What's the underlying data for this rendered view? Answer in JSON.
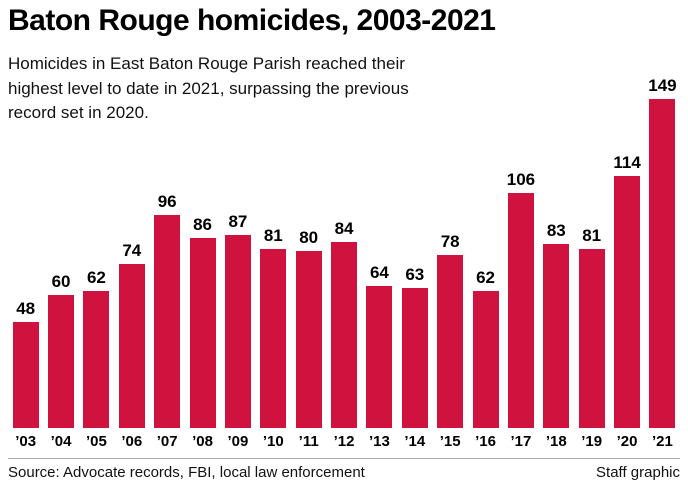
{
  "title": "Baton Rouge homicides, 2003-2021",
  "subtitle": "Homicides in East Baton Rouge Parish reached their highest level to date in 2021, surpassing the previous record set in 2020.",
  "footer": {
    "source": "Source: Advocate records, FBI, local law enforcement",
    "credit": "Staff graphic"
  },
  "colors": {
    "bar": "#d0123f",
    "text": "#000000"
  },
  "chart_data": {
    "type": "bar",
    "categories": [
      "’03",
      "’04",
      "’05",
      "’06",
      "’07",
      "’08",
      "’09",
      "’10",
      "’11",
      "’12",
      "’13",
      "’14",
      "’15",
      "’16",
      "’17",
      "’18",
      "’19",
      "’20",
      "’21"
    ],
    "values": [
      48,
      60,
      62,
      74,
      96,
      86,
      87,
      81,
      80,
      84,
      64,
      63,
      78,
      62,
      106,
      83,
      81,
      114,
      149
    ],
    "title": "Baton Rouge homicides, 2003-2021",
    "xlabel": "",
    "ylabel": "",
    "ylim": [
      0,
      155
    ],
    "grid": false,
    "legend": false,
    "value_labels": true
  }
}
